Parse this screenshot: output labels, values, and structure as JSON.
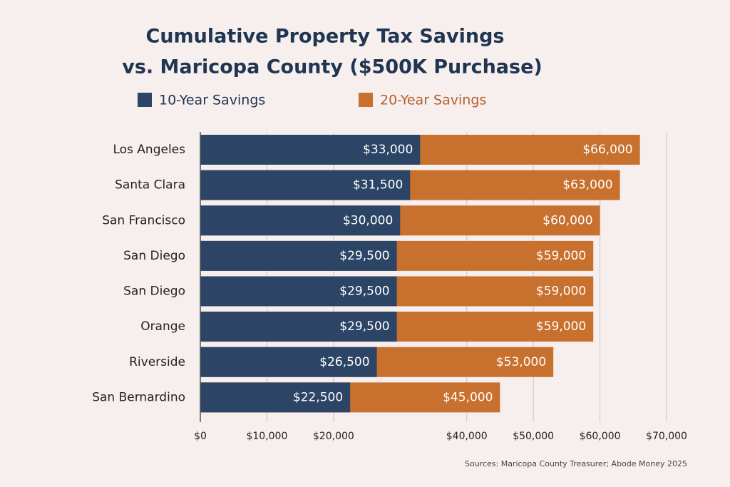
{
  "chart_data": {
    "type": "bar",
    "orientation": "horizontal",
    "overlap": true,
    "title": "Cumulative Property Tax Savings",
    "subtitle": "vs. Maricopa County ($500K Purchase)",
    "categories": [
      "Los Angeles",
      "Santa Clara",
      "San Francisco",
      "San Diego",
      "San Diego",
      "Orange",
      "Riverside",
      "San Bernardino"
    ],
    "series": [
      {
        "name": "10-Year Savings",
        "color": "#2c4466",
        "values": [
          33000,
          31500,
          30000,
          29500,
          29500,
          29500,
          26500,
          22500
        ],
        "value_labels": [
          "$33,000",
          "$31,500",
          "$30,000",
          "$29,500",
          "$29,500",
          "$29,500",
          "$26,500",
          "$22,500"
        ]
      },
      {
        "name": "20-Year Savings",
        "color": "#c8702e",
        "values": [
          66000,
          63000,
          60000,
          59000,
          59000,
          59000,
          53000,
          45000
        ],
        "value_labels": [
          "$66,000",
          "$63,000",
          "$60,000",
          "$59,000",
          "$59,000",
          "$59,000",
          "$53,000",
          "$45,000"
        ]
      }
    ],
    "xlim": [
      0,
      70000
    ],
    "xticks": [
      {
        "value": 0,
        "label": "$0"
      },
      {
        "value": 10000,
        "label": "$10,000"
      },
      {
        "value": 20000,
        "label": "$20,000"
      },
      {
        "value": 40000,
        "label": "$40,000"
      },
      {
        "value": 50000,
        "label": "$50,000"
      },
      {
        "value": 60000,
        "label": "$60,000"
      },
      {
        "value": 70000,
        "label": "$70,000"
      }
    ],
    "grid": true,
    "source": "Sources: Maricopa County Treasurer; Abode Money 2025"
  }
}
